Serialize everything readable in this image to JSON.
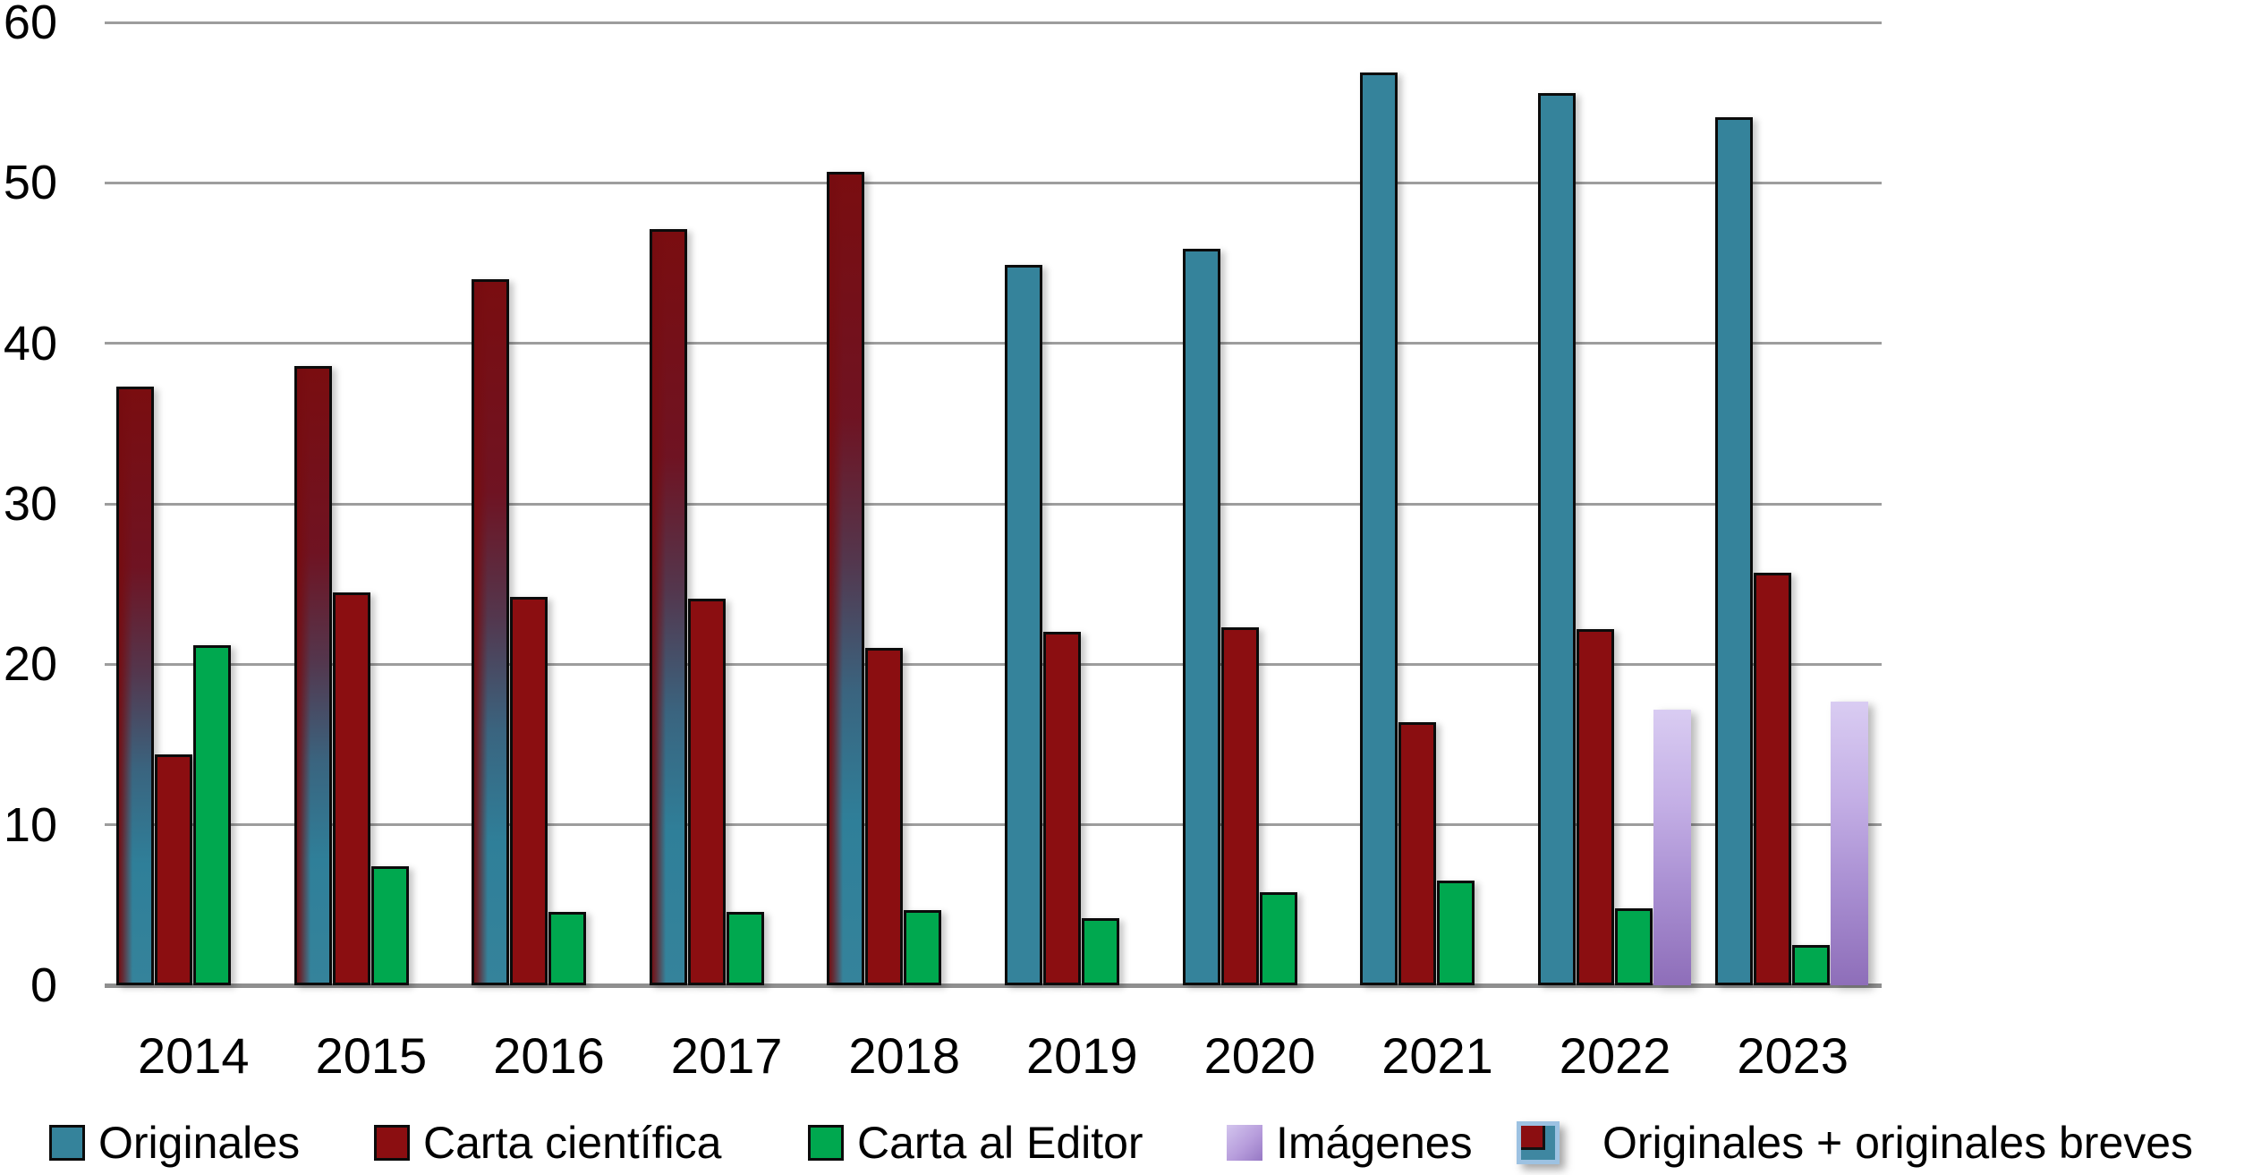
{
  "chart_data": {
    "type": "bar",
    "title": "",
    "xlabel": "",
    "ylabel": "",
    "categories": [
      "2014",
      "2015",
      "2016",
      "2017",
      "2018",
      "2019",
      "2020",
      "2021",
      "2022",
      "2023"
    ],
    "y_axis": {
      "min": 0,
      "max": 60,
      "tick_step": 10,
      "tick_labels": [
        "0",
        "10",
        "20",
        "30",
        "40",
        "50",
        "60"
      ]
    },
    "grid": true,
    "legend_position": "bottom",
    "series": [
      {
        "name": "Originales",
        "color": "#35839B",
        "outline": "#000000",
        "values": [
          null,
          null,
          null,
          null,
          null,
          44.9,
          45.9,
          56.9,
          55.6,
          54.1
        ]
      },
      {
        "name": "Carta científica",
        "color": "#8B0E11",
        "outline": "#000000",
        "values": [
          14.4,
          24.5,
          24.2,
          24.1,
          21.0,
          22.0,
          22.3,
          16.4,
          22.2,
          25.7
        ]
      },
      {
        "name": "Carta al Editor",
        "color": "#00A84F",
        "outline": "#000000",
        "values": [
          21.2,
          7.4,
          4.6,
          4.6,
          4.7,
          4.2,
          5.8,
          6.5,
          4.8,
          2.5
        ]
      },
      {
        "name": "Imágenes",
        "color_gradient": [
          "#D9CCF2",
          "#8E6EB9"
        ],
        "outline": "none",
        "values": [
          null,
          null,
          null,
          null,
          null,
          null,
          null,
          null,
          17.2,
          17.7
        ]
      },
      {
        "name": "Originales + originales breves",
        "color_gradient": [
          "#7A0D10",
          "#35839B"
        ],
        "outline": "#000000",
        "values": [
          37.3,
          38.6,
          44.0,
          47.1,
          50.7,
          null,
          null,
          null,
          null,
          null
        ]
      }
    ]
  }
}
